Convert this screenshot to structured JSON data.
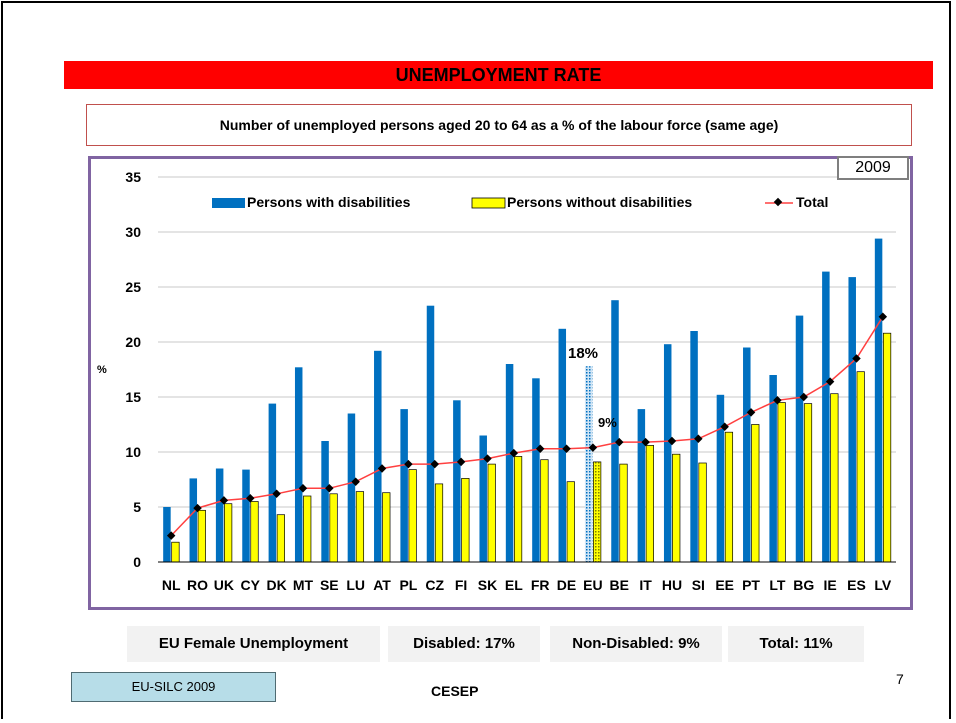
{
  "slide": {
    "title": "UNEMPLOYMENT RATE",
    "subtitle": "Number of unemployed persons aged 20 to 64 as a % of the labour force (same age)",
    "year": "2009",
    "footer": {
      "label": "EU Female Unemployment",
      "disabled": "Disabled: 17%",
      "non_disabled": "Non-Disabled: 9%",
      "total": "Total: 11%"
    },
    "source": "EU-SILC 2009",
    "organization": "CESEP",
    "page_number": "7"
  },
  "chart_data": {
    "type": "bar",
    "ylabel": "%",
    "ylim": [
      0,
      35
    ],
    "yticks": [
      0,
      5,
      10,
      15,
      20,
      25,
      30,
      35
    ],
    "grid": true,
    "legend_position": "top",
    "categories": [
      "NL",
      "RO",
      "UK",
      "CY",
      "DK",
      "MT",
      "SE",
      "LU",
      "AT",
      "PL",
      "CZ",
      "FI",
      "SK",
      "EL",
      "FR",
      "DE",
      "EU",
      "BE",
      "IT",
      "HU",
      "SI",
      "EE",
      "PT",
      "LT",
      "BG",
      "IE",
      "ES",
      "LV"
    ],
    "highlight_category": "EU",
    "series": [
      {
        "name": "Persons with disabilities",
        "kind": "bar",
        "color": "#0070c0",
        "values": [
          5.0,
          7.6,
          8.5,
          8.4,
          14.4,
          17.7,
          11.0,
          13.5,
          19.2,
          13.9,
          23.3,
          14.7,
          11.5,
          18.0,
          16.7,
          21.2,
          17.8,
          23.8,
          13.9,
          19.8,
          21.0,
          15.2,
          19.5,
          17.0,
          22.4,
          26.4,
          25.9,
          29.4
        ]
      },
      {
        "name": "Persons without disabilities",
        "kind": "bar",
        "color": "#ffff00",
        "values": [
          1.8,
          4.7,
          5.3,
          5.5,
          4.3,
          6.0,
          6.2,
          6.4,
          6.3,
          8.4,
          7.1,
          7.6,
          8.9,
          9.6,
          9.3,
          7.3,
          9.1,
          8.9,
          10.6,
          9.8,
          9.0,
          11.8,
          12.5,
          14.5,
          14.4,
          15.3,
          17.3,
          20.8
        ]
      },
      {
        "name": "Total",
        "kind": "line",
        "color": "#ff4040",
        "values": [
          2.4,
          4.9,
          5.6,
          5.8,
          6.2,
          6.7,
          6.7,
          7.3,
          8.5,
          8.9,
          8.9,
          9.1,
          9.4,
          9.9,
          10.3,
          10.3,
          10.4,
          10.9,
          10.9,
          11.0,
          11.2,
          12.3,
          13.6,
          14.7,
          15.0,
          16.4,
          18.5,
          22.3
        ]
      }
    ],
    "annotations": [
      "18%",
      "9%"
    ]
  }
}
